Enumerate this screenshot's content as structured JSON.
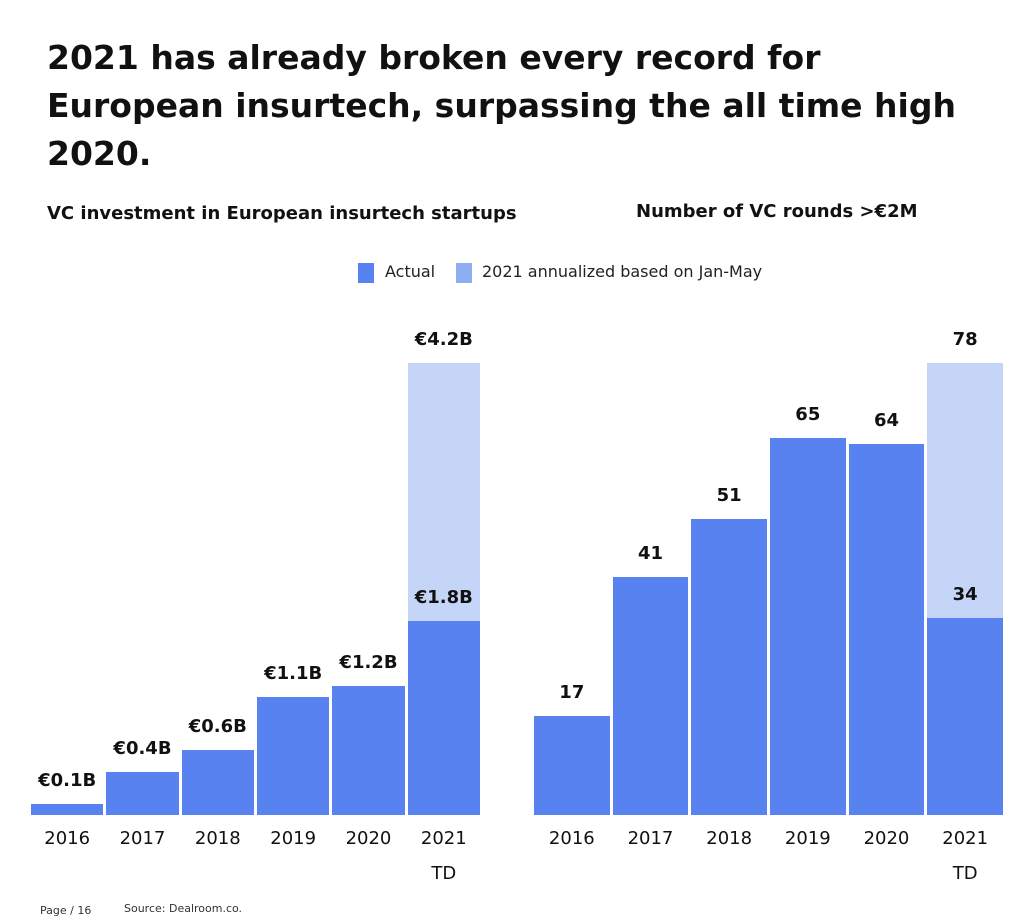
{
  "title": "2021 has already broken every record for European insurtech, surpassing the all time high 2020.",
  "chart_data": [
    {
      "type": "bar",
      "title": "VC investment in European insurtech startups",
      "categories": [
        "2016",
        "2017",
        "2018",
        "2019",
        "2020",
        "2021\nTD"
      ],
      "series": [
        {
          "name": "Actual",
          "color": "#5782f0",
          "values": [
            0.1,
            0.4,
            0.6,
            1.1,
            1.2,
            1.8
          ],
          "value_labels": [
            "€0.1B",
            "€0.4B",
            "€0.6B",
            "€1.1B",
            "€1.2B",
            "€1.8B"
          ]
        },
        {
          "name": "2021 annualized based on Jan-May",
          "color": "#c5d5f7",
          "values": [
            null,
            null,
            null,
            null,
            null,
            4.2
          ],
          "value_labels": [
            null,
            null,
            null,
            null,
            null,
            "€4.2B"
          ]
        }
      ]
    },
    {
      "type": "bar",
      "title": "Number of VC rounds >€2M",
      "categories": [
        "2016",
        "2017",
        "2018",
        "2019",
        "2020",
        "2021\nTD"
      ],
      "series": [
        {
          "color": "#5782f0",
          "values": [
            17,
            41,
            51,
            65,
            64,
            34
          ]
        },
        {
          "color": "#c5d5f7",
          "values": [
            null,
            null,
            null,
            null,
            null,
            78
          ]
        }
      ]
    }
  ],
  "footer": {
    "page": "Page / 16",
    "source": "Source: Dealroom.co."
  }
}
